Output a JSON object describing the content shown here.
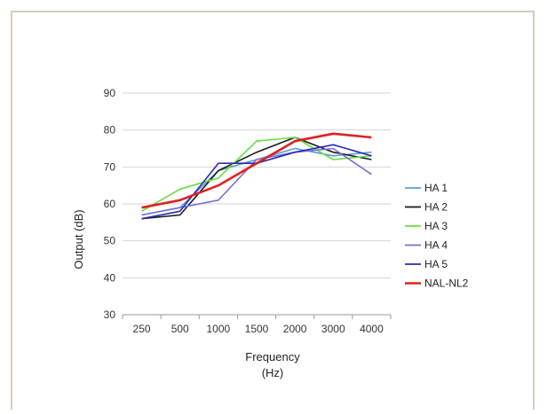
{
  "chart_data": {
    "type": "line",
    "title": "",
    "xlabel_line1": "Frequency",
    "xlabel_line2": "(Hz)",
    "ylabel": "Output (dB)",
    "ylim": [
      30,
      90
    ],
    "yticks": [
      30,
      40,
      50,
      60,
      70,
      80,
      90
    ],
    "categories": [
      "250",
      "500",
      "1000",
      "1500",
      "2000",
      "3000",
      "4000"
    ],
    "grid": "horizontal",
    "legend_position": "right",
    "series": [
      {
        "name": "HA 1",
        "color": "#5b9bd5",
        "values": [
          57,
          59,
          69,
          72,
          75,
          73,
          74
        ]
      },
      {
        "name": "HA 2",
        "color": "#1a1a1a",
        "values": [
          56,
          57,
          69,
          74,
          78,
          74,
          72
        ]
      },
      {
        "name": "HA 3",
        "color": "#66dd44",
        "values": [
          58,
          64,
          67,
          77,
          78,
          72,
          73
        ]
      },
      {
        "name": "HA 4",
        "color": "#7b6fd6",
        "values": [
          57,
          59,
          61,
          72,
          74,
          75,
          68
        ]
      },
      {
        "name": "HA 5",
        "color": "#2a2ab8",
        "values": [
          56,
          58,
          71,
          71,
          74,
          76,
          73
        ]
      },
      {
        "name": "NAL-NL2",
        "color": "#e02020",
        "values": [
          59,
          61,
          65,
          71,
          77,
          79,
          78
        ]
      }
    ]
  }
}
